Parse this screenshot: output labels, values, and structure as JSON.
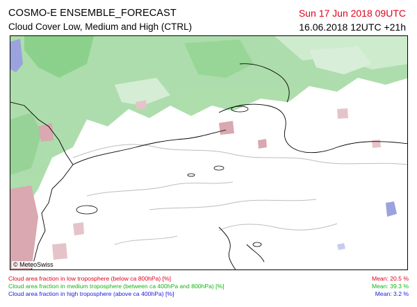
{
  "header": {
    "title": "COSMO-E ENSEMBLE_FORECAST",
    "subtitle": "Cloud Cover Low, Medium and High (CTRL)",
    "valid_time": "Sun 17 Jun 2018 09UTC",
    "run_time": "16.06.2018 12UTC +21h"
  },
  "map": {
    "copyright": "© MeteoSwiss",
    "colors": {
      "low": "#e2001a",
      "medium": "#14b414",
      "high": "#1a1adc",
      "low_cloud_fill": "#d9a8b0",
      "medium_cloud_fill": "#a9dca8",
      "high_cloud_fill": "#9aa3dd",
      "border_line": "#000000",
      "river_line": "#bdbdbd"
    }
  },
  "legend": [
    {
      "text": "Cloud area fraction in low troposphere (below ca 800hPa) [%]",
      "mean": "Mean:  20.5 %",
      "color": "#e2001a"
    },
    {
      "text": "Cloud area fraction in medium troposphere (between ca 400hPa and 800hPa) [%]",
      "mean": "Mean:  39.3 %",
      "color": "#14b414"
    },
    {
      "text": "Cloud area fraction in high troposphere (above ca 400hPa) [%]",
      "mean": "Mean:   3.2 %",
      "color": "#1a1adc"
    }
  ]
}
